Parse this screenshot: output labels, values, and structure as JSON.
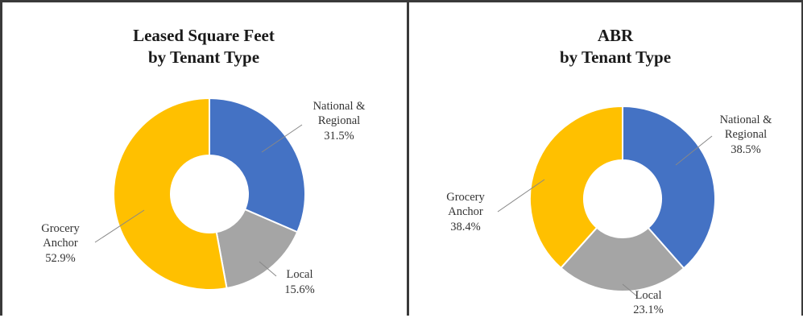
{
  "colors": {
    "national_regional": "#4472C4",
    "local": "#A5A5A5",
    "grocery_anchor": "#FFC000"
  },
  "chart_data": [
    {
      "type": "pie",
      "donut": true,
      "title_line1": "Leased Square Feet",
      "title_line2": "by Tenant Type",
      "slices": [
        {
          "label_line1": "National &",
          "label_line2": "Regional",
          "value": 31.5,
          "value_text": "31.5%",
          "color": "#4472C4"
        },
        {
          "label_line1": "Local",
          "label_line2": "",
          "value": 15.6,
          "value_text": "15.6%",
          "color": "#A5A5A5"
        },
        {
          "label_line1": "Grocery",
          "label_line2": "Anchor",
          "value": 52.9,
          "value_text": "52.9%",
          "color": "#FFC000"
        }
      ]
    },
    {
      "type": "pie",
      "donut": true,
      "title_line1": "ABR",
      "title_line2": "by Tenant Type",
      "slices": [
        {
          "label_line1": "National &",
          "label_line2": "Regional",
          "value": 38.5,
          "value_text": "38.5%",
          "color": "#4472C4"
        },
        {
          "label_line1": "Local",
          "label_line2": "",
          "value": 23.1,
          "value_text": "23.1%",
          "color": "#A5A5A5"
        },
        {
          "label_line1": "Grocery",
          "label_line2": "Anchor",
          "value": 38.4,
          "value_text": "38.4%",
          "color": "#FFC000"
        }
      ]
    }
  ]
}
